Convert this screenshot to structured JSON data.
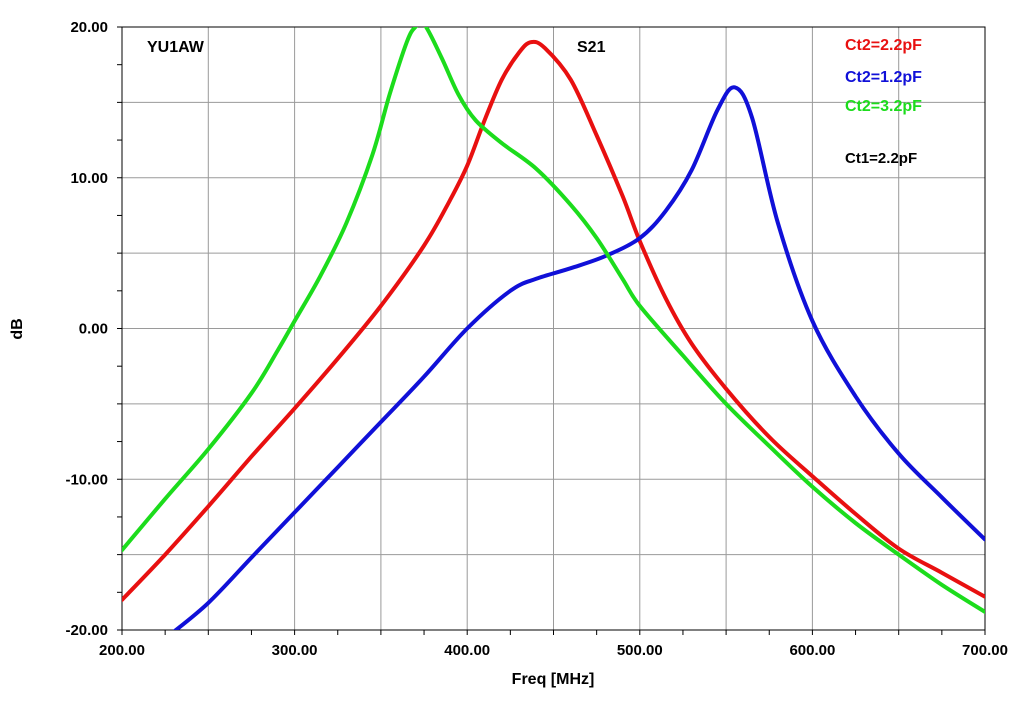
{
  "chart_data": {
    "type": "line",
    "title": "S21",
    "annotation_author": "YU1AW",
    "annotation_param": "Ct1=2.2pF",
    "xlabel": "Freq [MHz]",
    "ylabel": "dB",
    "xlim": [
      200,
      700
    ],
    "ylim": [
      -20,
      20
    ],
    "x_ticks": [
      200,
      300,
      400,
      500,
      600,
      700
    ],
    "y_ticks": [
      -20,
      -10,
      0,
      10,
      20
    ],
    "x_tick_labels": [
      "200.00",
      "300.00",
      "400.00",
      "500.00",
      "600.00",
      "700.00"
    ],
    "y_tick_labels": [
      "-20.00",
      "-10.00",
      "0.00",
      "10.00",
      "20.00"
    ],
    "grid": true,
    "legend_position": "top-right",
    "series": [
      {
        "name": "Ct2=2.2pF",
        "color": "#e81010",
        "x": [
          200,
          225,
          250,
          275,
          300,
          325,
          350,
          375,
          390,
          400,
          410,
          420,
          430,
          437,
          445,
          460,
          475,
          490,
          500,
          515,
          530,
          550,
          575,
          600,
          625,
          650,
          675,
          700
        ],
        "y": [
          -18,
          -15,
          -11.8,
          -8.5,
          -5.3,
          -2,
          1.5,
          5.5,
          8.5,
          10.8,
          13.8,
          16.5,
          18.3,
          19,
          18.6,
          16.5,
          12.8,
          8.8,
          5.8,
          2,
          -1,
          -4,
          -7.2,
          -9.8,
          -12.3,
          -14.6,
          -16.2,
          -17.8
        ]
      },
      {
        "name": "Ct2=1.2pF",
        "color": "#1010d8",
        "x": [
          228,
          250,
          275,
          300,
          325,
          350,
          375,
          400,
          425,
          440,
          460,
          480,
          500,
          515,
          530,
          545,
          555,
          565,
          580,
          600,
          625,
          650,
          675,
          700
        ],
        "y": [
          -20.3,
          -18.2,
          -15.2,
          -12.2,
          -9.2,
          -6.2,
          -3.2,
          0,
          2.5,
          3.3,
          4,
          4.8,
          6,
          7.8,
          10.5,
          14.5,
          16,
          14,
          7,
          0.5,
          -4.5,
          -8.3,
          -11.2,
          -14
        ]
      },
      {
        "name": "Ct2=3.2pF",
        "color": "#1cdc1c",
        "x": [
          200,
          225,
          250,
          275,
          290,
          300,
          315,
          330,
          345,
          355,
          365,
          370,
          375,
          385,
          395,
          405,
          420,
          440,
          460,
          475,
          490,
          500,
          525,
          550,
          575,
          600,
          625,
          650,
          675,
          700
        ],
        "y": [
          -14.7,
          -11.3,
          -8,
          -4.3,
          -1.5,
          0.5,
          3.5,
          7,
          11.5,
          15.5,
          19,
          20,
          20.2,
          18,
          15.5,
          13.8,
          12.3,
          10.6,
          8.2,
          6,
          3.3,
          1.5,
          -1.8,
          -5,
          -7.8,
          -10.5,
          -12.9,
          -15,
          -17,
          -18.8
        ]
      }
    ]
  }
}
